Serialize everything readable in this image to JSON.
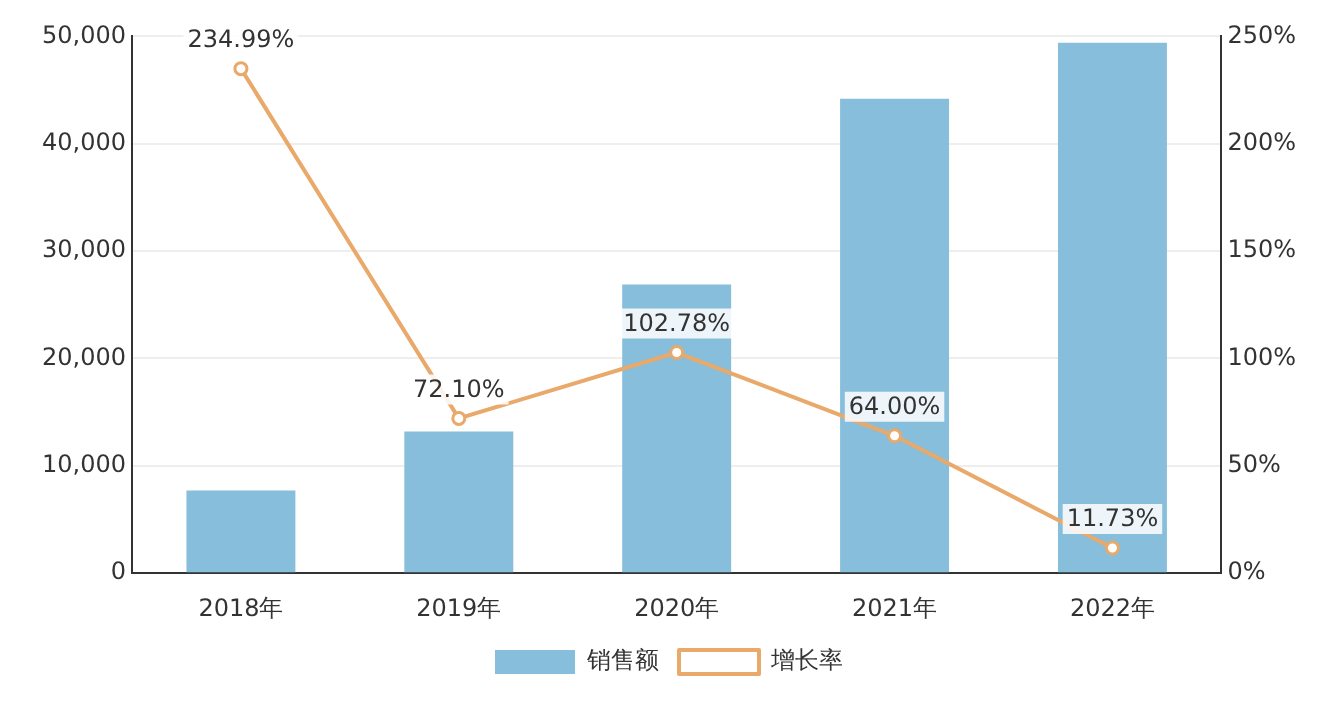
{
  "chart_data": {
    "type": "bar",
    "categories": [
      "2018年",
      "2019年",
      "2020年",
      "2021年",
      "2022年"
    ],
    "series": [
      {
        "name": "销售额",
        "color": "#86bedb",
        "values": [
          7700,
          13200,
          26900,
          44200,
          49400
        ]
      },
      {
        "name": "增长率",
        "type": "line",
        "axis": "y2",
        "color": "#e8a96a",
        "values": [
          234.99,
          72.1,
          102.78,
          64.0,
          11.73
        ],
        "value_labels": [
          "234.99%",
          "72.10%",
          "102.78%",
          "64.00%",
          "11.73%"
        ]
      }
    ],
    "ylim": [
      0,
      50000
    ],
    "yticks": [
      {
        "value": 0,
        "label": "0"
      },
      {
        "value": 10000,
        "label": "10,000"
      },
      {
        "value": 20000,
        "label": "20,000"
      },
      {
        "value": 30000,
        "label": "30,000"
      },
      {
        "value": 40000,
        "label": "40,000"
      },
      {
        "value": 50000,
        "label": "50,000"
      }
    ],
    "y2lim": [
      0,
      250
    ],
    "y2ticks": [
      {
        "value": 0,
        "label": "0%"
      },
      {
        "value": 50,
        "label": "50%"
      },
      {
        "value": 100,
        "label": "100%"
      },
      {
        "value": 150,
        "label": "150%"
      },
      {
        "value": 200,
        "label": "200%"
      },
      {
        "value": 250,
        "label": "250%"
      }
    ],
    "grid": "y",
    "legend": "bottom",
    "marker": "circle",
    "line_style": "solid"
  }
}
